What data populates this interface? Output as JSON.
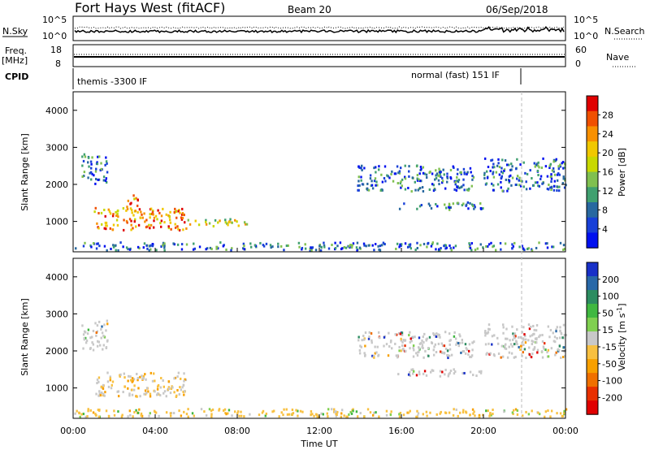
{
  "header": {
    "title": "Fort Hays West (fitACF)",
    "beam": "Beam 20",
    "date": "06/Sep/2018"
  },
  "top_panels": {
    "nsky_label": "N.Sky",
    "nsearch_label": "N.Search",
    "noise_left_ticks": [
      "10^5",
      "10^0"
    ],
    "noise_right_ticks": [
      "10^5",
      "10^0"
    ],
    "freq_label": "Freq.",
    "freq_unit": "[MHz]",
    "freq_ticks": [
      "18",
      "8"
    ],
    "nave_label": "Nave",
    "nave_ticks": [
      "60",
      "0"
    ],
    "cpid_label": "CPID",
    "cpid_segments": [
      "themis -3300 IF",
      "normal (fast) 151 IF"
    ]
  },
  "chart_data": [
    {
      "type": "heatmap",
      "name": "power-panel",
      "ylabel": "Slant Range [km]",
      "ylim": [
        180,
        4500
      ],
      "yticks": [
        1000,
        2000,
        3000,
        4000
      ],
      "xlim_hours": [
        0,
        24
      ],
      "colorbar": {
        "label": "Power [dB]",
        "ticks": [
          "28",
          "24",
          "20",
          "16",
          "12",
          "8",
          "4"
        ],
        "colors": [
          "#e00000",
          "#f05000",
          "#f89000",
          "#f0c800",
          "#c8d800",
          "#80c050",
          "#40a070",
          "#2868a0",
          "#1840d8",
          "#0010f0"
        ]
      },
      "regions": [
        {
          "t0": 0.4,
          "t1": 1.7,
          "r0": 2000,
          "r1": 2800,
          "level": "weak"
        },
        {
          "t0": 1.0,
          "t1": 5.5,
          "r0": 750,
          "r1": 1350,
          "level": "strong"
        },
        {
          "t0": 2.5,
          "t1": 3.2,
          "r0": 1300,
          "r1": 1700,
          "level": "strong"
        },
        {
          "t0": 5.5,
          "t1": 8.5,
          "r0": 850,
          "r1": 1050,
          "level": "medium"
        },
        {
          "t0": 13.8,
          "t1": 19.5,
          "r0": 1800,
          "r1": 2500,
          "level": "weak"
        },
        {
          "t0": 15.8,
          "t1": 20.0,
          "r0": 1300,
          "r1": 1500,
          "level": "weak"
        },
        {
          "t0": 20.0,
          "t1": 24.0,
          "r0": 1800,
          "r1": 2700,
          "level": "weak"
        },
        {
          "t0": 0.0,
          "t1": 24.0,
          "r0": 200,
          "r1": 420,
          "level": "ground"
        }
      ]
    },
    {
      "type": "heatmap",
      "name": "velocity-panel",
      "ylabel": "Slant Range [km]",
      "xlabel": "Time UT",
      "ylim": [
        180,
        4500
      ],
      "yticks": [
        1000,
        2000,
        3000,
        4000
      ],
      "xticks": [
        "00:00",
        "04:00",
        "08:00",
        "12:00",
        "16:00",
        "20:00",
        "00:00"
      ],
      "colorbar": {
        "label": "Velocity [m s^-1]",
        "ticks": [
          "200",
          "100",
          "50",
          "15",
          "-15",
          "-50",
          "-100",
          "-200"
        ],
        "colors": [
          "#1830c8",
          "#2868a8",
          "#2c8c60",
          "#40b840",
          "#80d050",
          "#c8c8c8",
          "#f8c040",
          "#f8a000",
          "#f07000",
          "#e83000",
          "#e00000"
        ]
      },
      "regions": [
        {
          "t0": 0.4,
          "t1": 1.7,
          "r0": 2000,
          "r1": 2800,
          "level": "grey"
        },
        {
          "t0": 1.0,
          "t1": 5.5,
          "r0": 750,
          "r1": 1400,
          "level": "mixed"
        },
        {
          "t0": 13.8,
          "t1": 19.5,
          "r0": 1800,
          "r1": 2500,
          "level": "grey"
        },
        {
          "t0": 15.8,
          "t1": 20.0,
          "r0": 1300,
          "r1": 1500,
          "level": "grey"
        },
        {
          "t0": 20.0,
          "t1": 24.0,
          "r0": 1800,
          "r1": 2700,
          "level": "grey"
        },
        {
          "t0": 0.0,
          "t1": 24.0,
          "r0": 200,
          "r1": 420,
          "level": "ground"
        }
      ]
    }
  ]
}
